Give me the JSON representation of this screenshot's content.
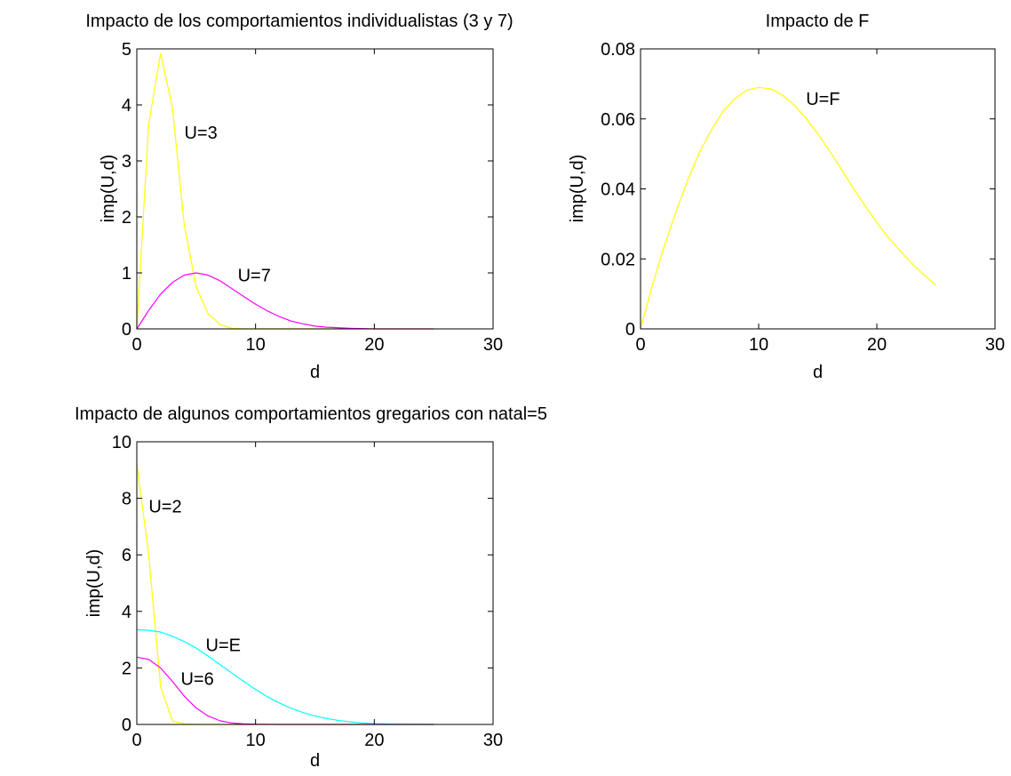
{
  "chart_data": [
    {
      "type": "line",
      "title": "Impacto de los comportamientos individualistas (3 y 7)",
      "xlabel": "d",
      "ylabel": "imp(U,d)",
      "xlim": [
        0,
        30
      ],
      "ylim": [
        0,
        5
      ],
      "xticks": [
        0,
        10,
        20,
        30
      ],
      "yticks": [
        0,
        1,
        2,
        3,
        4,
        5
      ],
      "grid": false,
      "series": [
        {
          "name": "U=3",
          "color": "#ffff00",
          "x": [
            0,
            1,
            2,
            3,
            4,
            5,
            6,
            7,
            8,
            9,
            10,
            15,
            20,
            25
          ],
          "y": [
            0,
            3.65,
            4.92,
            3.95,
            1.85,
            0.75,
            0.27,
            0.08,
            0.01,
            0,
            0,
            0,
            0,
            0
          ]
        },
        {
          "name": "U=7",
          "color": "#ff00ff",
          "x": [
            0,
            1,
            2,
            3,
            4,
            5,
            6,
            7,
            8,
            9,
            10,
            11,
            12,
            13,
            14,
            15,
            16,
            18,
            20,
            25
          ],
          "y": [
            0,
            0.33,
            0.62,
            0.83,
            0.96,
            1.0,
            0.96,
            0.86,
            0.72,
            0.58,
            0.44,
            0.32,
            0.22,
            0.14,
            0.09,
            0.05,
            0.03,
            0.01,
            0,
            0
          ]
        }
      ],
      "annotations": [
        {
          "text": "U=3",
          "x": 4,
          "y": 3.4
        },
        {
          "text": "U=7",
          "x": 8.5,
          "y": 0.85
        }
      ]
    },
    {
      "type": "line",
      "title": "Impacto de F",
      "xlabel": "d",
      "ylabel": "imp(U,d)",
      "xlim": [
        0,
        30
      ],
      "ylim": [
        0,
        0.08
      ],
      "xticks": [
        0,
        10,
        20,
        30
      ],
      "yticks": [
        0,
        0.02,
        0.04,
        0.06,
        0.08
      ],
      "ytick_labels": [
        "0",
        "0.02",
        "0.04",
        "0.06",
        "0.08"
      ],
      "grid": false,
      "series": [
        {
          "name": "U=F",
          "color": "#ffff00",
          "x": [
            0,
            1,
            2,
            3,
            4,
            5,
            6,
            7,
            8,
            9,
            10,
            11,
            12,
            13,
            14,
            15,
            16,
            17,
            18,
            19,
            20,
            21,
            22,
            23,
            24,
            25
          ],
          "y": [
            0,
            0.0125,
            0.0235,
            0.0335,
            0.0425,
            0.0505,
            0.0568,
            0.0622,
            0.0658,
            0.0682,
            0.069,
            0.0686,
            0.0668,
            0.064,
            0.0602,
            0.0558,
            0.0508,
            0.0456,
            0.0402,
            0.0352,
            0.0304,
            0.026,
            0.0222,
            0.0186,
            0.0154,
            0.0125
          ]
        }
      ],
      "annotations": [
        {
          "text": "U=F",
          "x": 14,
          "y": 0.064
        }
      ]
    },
    {
      "type": "line",
      "title": "Impacto de algunos comportamientos gregarios con natal=5",
      "xlabel": "d",
      "ylabel": "imp(U,d)",
      "xlim": [
        0,
        30
      ],
      "ylim": [
        0,
        10
      ],
      "xticks": [
        0,
        10,
        20,
        30
      ],
      "yticks": [
        0,
        2,
        4,
        6,
        8,
        10
      ],
      "grid": false,
      "series": [
        {
          "name": "U=2",
          "color": "#ffff00",
          "x": [
            0,
            1,
            2,
            3,
            4,
            5,
            6,
            10,
            15,
            20,
            25
          ],
          "y": [
            9.2,
            6.0,
            1.35,
            0.12,
            0.02,
            0,
            0,
            0,
            0,
            0,
            0
          ]
        },
        {
          "name": "U=E",
          "color": "#00ffff",
          "x": [
            0,
            1,
            2,
            3,
            4,
            5,
            6,
            7,
            8,
            9,
            10,
            11,
            12,
            13,
            14,
            15,
            16,
            17,
            18,
            19,
            20,
            22,
            25
          ],
          "y": [
            3.35,
            3.33,
            3.27,
            3.12,
            2.93,
            2.7,
            2.42,
            2.12,
            1.82,
            1.52,
            1.24,
            0.98,
            0.76,
            0.57,
            0.42,
            0.3,
            0.21,
            0.14,
            0.09,
            0.05,
            0.03,
            0.01,
            0
          ]
        },
        {
          "name": "U=6",
          "color": "#ff00ff",
          "x": [
            0,
            1,
            2,
            3,
            4,
            5,
            6,
            7,
            8,
            9,
            10,
            12,
            15,
            20,
            25
          ],
          "y": [
            2.38,
            2.3,
            2.0,
            1.52,
            1.0,
            0.58,
            0.3,
            0.13,
            0.05,
            0.02,
            0.01,
            0,
            0,
            0,
            0
          ]
        }
      ],
      "annotations": [
        {
          "text": "U=2",
          "x": 1,
          "y": 7.5
        },
        {
          "text": "U=E",
          "x": 5.8,
          "y": 2.6
        },
        {
          "text": "U=6",
          "x": 3.7,
          "y": 1.4
        }
      ]
    }
  ]
}
